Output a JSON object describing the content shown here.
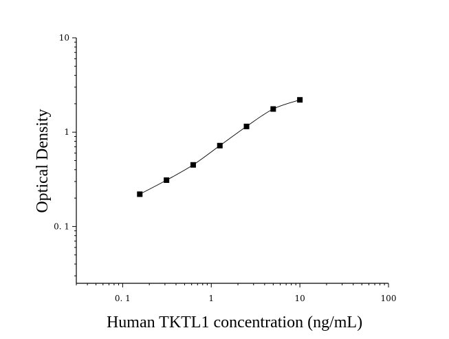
{
  "chart_data": {
    "type": "scatter",
    "title": "",
    "xlabel": "Human TKTL1 concentration (ng/mL)",
    "ylabel": "Optical Density",
    "x_scale": "log",
    "y_scale": "log",
    "xlim": [
      0.03,
      100
    ],
    "ylim": [
      0.025,
      10
    ],
    "x_ticks": [
      {
        "value": 0.1,
        "label": "0. 1"
      },
      {
        "value": 1,
        "label": "1"
      },
      {
        "value": 10,
        "label": "10"
      },
      {
        "value": 100,
        "label": "100"
      }
    ],
    "y_ticks": [
      {
        "value": 0.1,
        "label": "0. 1"
      },
      {
        "value": 1,
        "label": "1"
      },
      {
        "value": 10,
        "label": "10"
      }
    ],
    "grid": false,
    "series": [
      {
        "x": [
          0.156,
          0.3125,
          0.625,
          1.25,
          2.5,
          5,
          10
        ],
        "y": [
          0.22,
          0.31,
          0.45,
          0.72,
          1.15,
          1.76,
          2.2
        ],
        "marker": "square",
        "fit": "smooth-curve"
      }
    ],
    "colors": {
      "marks": "#000000",
      "background": "#ffffff"
    }
  }
}
